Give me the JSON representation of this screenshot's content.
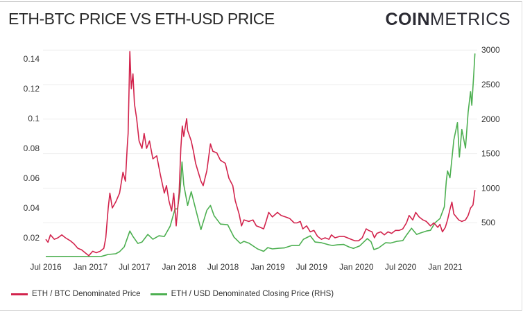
{
  "header": {
    "title": "ETH-BTC PRICE VS ETH-USD PRICE",
    "logo_bold": "COIN",
    "logo_light": "METRICS"
  },
  "chart_data": {
    "type": "line",
    "title": "ETH-BTC PRICE VS ETH-USD PRICE",
    "grid": true,
    "legend_placement": "bottom-left",
    "x_ticks": [
      "Jul 2016",
      "Jan 2017",
      "Jul 2017",
      "Jan 2018",
      "Jul 2018",
      "Jan 2019",
      "Jul 2019",
      "Jan 2020",
      "Jul 2020",
      "Jan 2021"
    ],
    "x_tick_dates": [
      "2016-07-01",
      "2017-01-01",
      "2017-07-01",
      "2018-01-01",
      "2018-07-01",
      "2019-01-01",
      "2019-07-01",
      "2020-01-01",
      "2020-07-01",
      "2021-01-01"
    ],
    "y_left": {
      "ticks": [
        "0.02",
        "0.04",
        "0.06",
        "0.08",
        "0.1",
        "0.12",
        "0.14"
      ],
      "tick_values": [
        0.02,
        0.04,
        0.06,
        0.08,
        0.1,
        0.12,
        0.14
      ],
      "range": [
        0,
        0.15
      ]
    },
    "y_right": {
      "ticks": [
        "500",
        "1000",
        "1500",
        "2000",
        "2500",
        "3000"
      ],
      "tick_values": [
        500,
        1000,
        1500,
        2000,
        2500,
        3000
      ],
      "range": [
        0,
        3000
      ]
    },
    "series": [
      {
        "name": "ETH / BTC Denominated Price",
        "axis": "left",
        "color": "#d2234c",
        "points": [
          [
            "2016-07-01",
            0.019
          ],
          [
            "2016-07-10",
            0.017
          ],
          [
            "2016-07-20",
            0.022
          ],
          [
            "2016-08-05",
            0.019
          ],
          [
            "2016-08-20",
            0.02
          ],
          [
            "2016-09-05",
            0.022
          ],
          [
            "2016-09-20",
            0.02
          ],
          [
            "2016-10-10",
            0.018
          ],
          [
            "2016-10-25",
            0.016
          ],
          [
            "2016-11-10",
            0.013
          ],
          [
            "2016-11-25",
            0.012
          ],
          [
            "2016-12-10",
            0.01
          ],
          [
            "2016-12-25",
            0.008
          ],
          [
            "2017-01-10",
            0.011
          ],
          [
            "2017-01-25",
            0.01
          ],
          [
            "2017-02-10",
            0.011
          ],
          [
            "2017-02-25",
            0.013
          ],
          [
            "2017-03-05",
            0.02
          ],
          [
            "2017-03-15",
            0.04
          ],
          [
            "2017-03-22",
            0.05
          ],
          [
            "2017-04-01",
            0.04
          ],
          [
            "2017-04-15",
            0.044
          ],
          [
            "2017-05-01",
            0.05
          ],
          [
            "2017-05-15",
            0.064
          ],
          [
            "2017-05-25",
            0.058
          ],
          [
            "2017-06-01",
            0.08
          ],
          [
            "2017-06-05",
            0.09
          ],
          [
            "2017-06-12",
            0.145
          ],
          [
            "2017-06-18",
            0.12
          ],
          [
            "2017-06-25",
            0.13
          ],
          [
            "2017-07-01",
            0.11
          ],
          [
            "2017-07-10",
            0.1
          ],
          [
            "2017-07-20",
            0.085
          ],
          [
            "2017-08-01",
            0.08
          ],
          [
            "2017-08-10",
            0.09
          ],
          [
            "2017-08-20",
            0.08
          ],
          [
            "2017-09-01",
            0.085
          ],
          [
            "2017-09-15",
            0.073
          ],
          [
            "2017-10-01",
            0.075
          ],
          [
            "2017-10-15",
            0.063
          ],
          [
            "2017-11-01",
            0.05
          ],
          [
            "2017-11-10",
            0.055
          ],
          [
            "2017-11-20",
            0.045
          ],
          [
            "2017-12-01",
            0.038
          ],
          [
            "2017-12-10",
            0.05
          ],
          [
            "2017-12-20",
            0.028
          ],
          [
            "2018-01-01",
            0.05
          ],
          [
            "2018-01-08",
            0.08
          ],
          [
            "2018-01-14",
            0.095
          ],
          [
            "2018-01-20",
            0.088
          ],
          [
            "2018-02-01",
            0.1
          ],
          [
            "2018-02-05",
            0.092
          ],
          [
            "2018-02-20",
            0.085
          ],
          [
            "2018-03-01",
            0.078
          ],
          [
            "2018-03-10",
            0.07
          ],
          [
            "2018-04-01",
            0.058
          ],
          [
            "2018-04-10",
            0.055
          ],
          [
            "2018-04-25",
            0.065
          ],
          [
            "2018-05-10",
            0.083
          ],
          [
            "2018-05-20",
            0.078
          ],
          [
            "2018-06-05",
            0.077
          ],
          [
            "2018-06-20",
            0.072
          ],
          [
            "2018-07-10",
            0.07
          ],
          [
            "2018-07-25",
            0.06
          ],
          [
            "2018-08-10",
            0.055
          ],
          [
            "2018-08-20",
            0.045
          ],
          [
            "2018-09-05",
            0.036
          ],
          [
            "2018-09-15",
            0.028
          ],
          [
            "2018-09-25",
            0.032
          ],
          [
            "2018-10-15",
            0.031
          ],
          [
            "2018-11-01",
            0.032
          ],
          [
            "2018-11-15",
            0.028
          ],
          [
            "2018-12-01",
            0.027
          ],
          [
            "2018-12-15",
            0.026
          ],
          [
            "2018-12-25",
            0.031
          ],
          [
            "2019-01-05",
            0.037
          ],
          [
            "2019-01-20",
            0.034
          ],
          [
            "2019-02-10",
            0.037
          ],
          [
            "2019-02-25",
            0.035
          ],
          [
            "2019-03-15",
            0.034
          ],
          [
            "2019-04-01",
            0.033
          ],
          [
            "2019-04-20",
            0.03
          ],
          [
            "2019-05-01",
            0.03
          ],
          [
            "2019-05-15",
            0.031
          ],
          [
            "2019-05-25",
            0.026
          ],
          [
            "2019-06-10",
            0.028
          ],
          [
            "2019-06-25",
            0.024
          ],
          [
            "2019-07-10",
            0.025
          ],
          [
            "2019-07-25",
            0.021
          ],
          [
            "2019-08-10",
            0.019
          ],
          [
            "2019-08-25",
            0.02
          ],
          [
            "2019-09-10",
            0.019
          ],
          [
            "2019-09-20",
            0.022
          ],
          [
            "2019-10-05",
            0.02
          ],
          [
            "2019-10-25",
            0.021
          ],
          [
            "2019-11-10",
            0.021
          ],
          [
            "2019-11-25",
            0.02
          ],
          [
            "2019-12-10",
            0.019
          ],
          [
            "2019-12-25",
            0.018
          ],
          [
            "2020-01-10",
            0.018
          ],
          [
            "2020-01-25",
            0.02
          ],
          [
            "2020-02-10",
            0.026
          ],
          [
            "2020-02-20",
            0.025
          ],
          [
            "2020-03-05",
            0.024
          ],
          [
            "2020-03-15",
            0.02
          ],
          [
            "2020-03-25",
            0.023
          ],
          [
            "2020-04-10",
            0.024
          ],
          [
            "2020-04-25",
            0.022
          ],
          [
            "2020-05-10",
            0.024
          ],
          [
            "2020-05-25",
            0.023
          ],
          [
            "2020-06-10",
            0.025
          ],
          [
            "2020-06-25",
            0.025
          ],
          [
            "2020-07-10",
            0.026
          ],
          [
            "2020-07-25",
            0.03
          ],
          [
            "2020-08-05",
            0.035
          ],
          [
            "2020-08-20",
            0.032
          ],
          [
            "2020-09-01",
            0.037
          ],
          [
            "2020-09-15",
            0.034
          ],
          [
            "2020-10-01",
            0.032
          ],
          [
            "2020-10-15",
            0.031
          ],
          [
            "2020-11-01",
            0.028
          ],
          [
            "2020-11-15",
            0.03
          ],
          [
            "2020-12-01",
            0.027
          ],
          [
            "2020-12-10",
            0.029
          ],
          [
            "2020-12-20",
            0.024
          ],
          [
            "2021-01-01",
            0.027
          ],
          [
            "2021-01-10",
            0.032
          ],
          [
            "2021-01-20",
            0.039
          ],
          [
            "2021-01-28",
            0.044
          ],
          [
            "2021-02-05",
            0.036
          ],
          [
            "2021-02-15",
            0.034
          ],
          [
            "2021-02-25",
            0.032
          ],
          [
            "2021-03-10",
            0.031
          ],
          [
            "2021-03-25",
            0.032
          ],
          [
            "2021-04-05",
            0.035
          ],
          [
            "2021-04-15",
            0.04
          ],
          [
            "2021-04-25",
            0.042
          ],
          [
            "2021-05-03",
            0.052
          ]
        ]
      },
      {
        "name": "ETH / USD Denominated Closing Price (RHS)",
        "axis": "right",
        "color": "#4caf50",
        "points": [
          [
            "2016-07-01",
            11
          ],
          [
            "2016-10-01",
            12
          ],
          [
            "2017-01-01",
            9
          ],
          [
            "2017-02-15",
            12
          ],
          [
            "2017-03-15",
            40
          ],
          [
            "2017-04-15",
            50
          ],
          [
            "2017-05-01",
            80
          ],
          [
            "2017-05-20",
            150
          ],
          [
            "2017-06-12",
            380
          ],
          [
            "2017-06-25",
            300
          ],
          [
            "2017-07-15",
            200
          ],
          [
            "2017-08-01",
            220
          ],
          [
            "2017-08-25",
            330
          ],
          [
            "2017-09-15",
            260
          ],
          [
            "2017-10-10",
            310
          ],
          [
            "2017-11-01",
            300
          ],
          [
            "2017-11-25",
            450
          ],
          [
            "2017-12-15",
            700
          ],
          [
            "2017-12-25",
            700
          ],
          [
            "2018-01-05",
            950
          ],
          [
            "2018-01-13",
            1380
          ],
          [
            "2018-01-20",
            1050
          ],
          [
            "2018-02-05",
            750
          ],
          [
            "2018-02-20",
            950
          ],
          [
            "2018-03-10",
            700
          ],
          [
            "2018-04-01",
            400
          ],
          [
            "2018-04-25",
            680
          ],
          [
            "2018-05-10",
            750
          ],
          [
            "2018-05-25",
            600
          ],
          [
            "2018-06-20",
            480
          ],
          [
            "2018-07-20",
            470
          ],
          [
            "2018-08-15",
            290
          ],
          [
            "2018-09-10",
            200
          ],
          [
            "2018-09-25",
            230
          ],
          [
            "2018-10-15",
            205
          ],
          [
            "2018-11-20",
            120
          ],
          [
            "2018-12-15",
            85
          ],
          [
            "2019-01-01",
            140
          ],
          [
            "2019-01-20",
            120
          ],
          [
            "2019-02-15",
            130
          ],
          [
            "2019-03-10",
            135
          ],
          [
            "2019-04-10",
            170
          ],
          [
            "2019-05-10",
            170
          ],
          [
            "2019-05-28",
            260
          ],
          [
            "2019-06-25",
            310
          ],
          [
            "2019-07-15",
            220
          ],
          [
            "2019-08-10",
            210
          ],
          [
            "2019-09-10",
            180
          ],
          [
            "2019-09-25",
            170
          ],
          [
            "2019-10-15",
            180
          ],
          [
            "2019-11-10",
            185
          ],
          [
            "2019-12-01",
            150
          ],
          [
            "2019-12-20",
            128
          ],
          [
            "2020-01-15",
            165
          ],
          [
            "2020-02-15",
            270
          ],
          [
            "2020-03-01",
            225
          ],
          [
            "2020-03-13",
            110
          ],
          [
            "2020-04-01",
            135
          ],
          [
            "2020-04-30",
            210
          ],
          [
            "2020-05-20",
            205
          ],
          [
            "2020-06-15",
            230
          ],
          [
            "2020-07-10",
            240
          ],
          [
            "2020-07-25",
            320
          ],
          [
            "2020-08-15",
            420
          ],
          [
            "2020-09-05",
            330
          ],
          [
            "2020-09-20",
            350
          ],
          [
            "2020-10-15",
            380
          ],
          [
            "2020-11-01",
            390
          ],
          [
            "2020-11-20",
            500
          ],
          [
            "2020-12-10",
            560
          ],
          [
            "2020-12-28",
            730
          ],
          [
            "2021-01-05",
            1100
          ],
          [
            "2021-01-10",
            1250
          ],
          [
            "2021-01-20",
            1150
          ],
          [
            "2021-02-05",
            1700
          ],
          [
            "2021-02-20",
            1950
          ],
          [
            "2021-02-28",
            1450
          ],
          [
            "2021-03-10",
            1850
          ],
          [
            "2021-03-25",
            1580
          ],
          [
            "2021-04-05",
            2100
          ],
          [
            "2021-04-15",
            2400
          ],
          [
            "2021-04-20",
            2200
          ],
          [
            "2021-04-28",
            2650
          ],
          [
            "2021-05-03",
            2950
          ]
        ]
      }
    ]
  }
}
